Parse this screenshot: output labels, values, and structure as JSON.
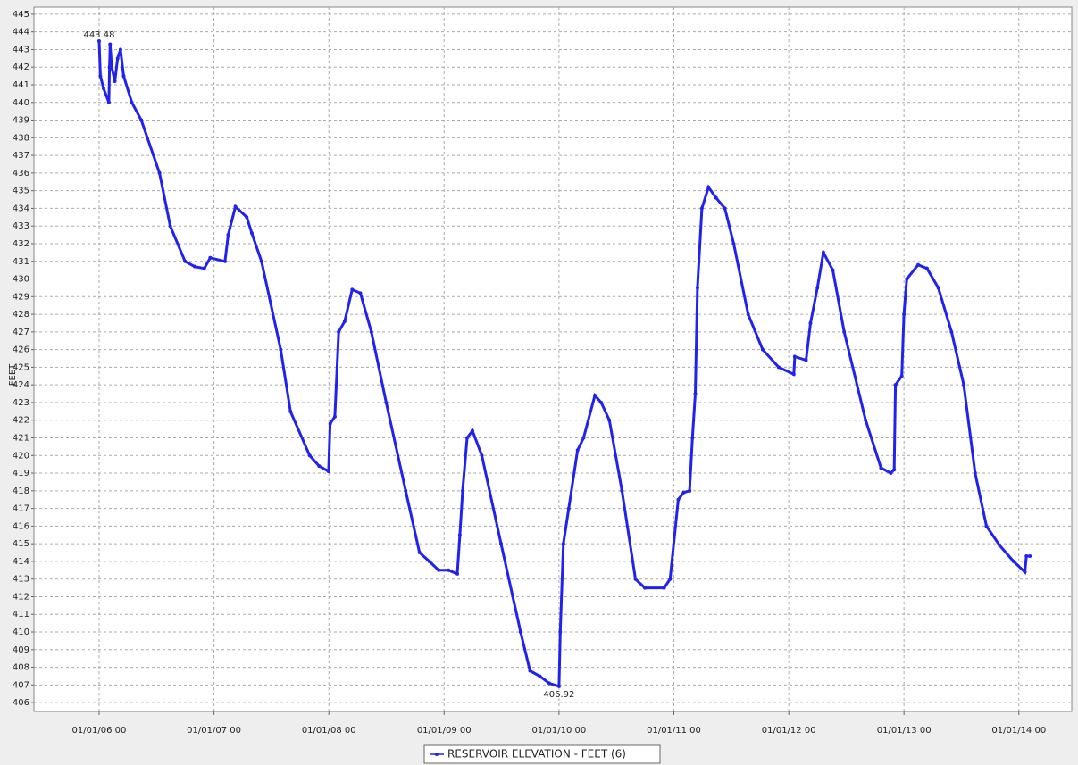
{
  "chart_data": {
    "type": "line",
    "y_label": "FEET",
    "xlim": [
      "2005-06-08",
      "2014-06-18"
    ],
    "xticks": [
      {
        "value": "2006-01-01",
        "label": "01/01/06 00"
      },
      {
        "value": "2007-01-01",
        "label": "01/01/07 00"
      },
      {
        "value": "2008-01-01",
        "label": "01/01/08 00"
      },
      {
        "value": "2009-01-01",
        "label": "01/01/09 00"
      },
      {
        "value": "2010-01-01",
        "label": "01/01/10 00"
      },
      {
        "value": "2011-01-01",
        "label": "01/01/11 00"
      },
      {
        "value": "2012-01-01",
        "label": "01/01/12 00"
      },
      {
        "value": "2013-01-01",
        "label": "01/01/13 00"
      },
      {
        "value": "2014-01-01",
        "label": "01/01/14 00"
      }
    ],
    "ylim": [
      405.5,
      445.4
    ],
    "yticks": [
      406,
      407,
      408,
      409,
      410,
      411,
      412,
      413,
      414,
      415,
      416,
      417,
      418,
      419,
      420,
      421,
      422,
      423,
      424,
      425,
      426,
      427,
      428,
      429,
      430,
      431,
      432,
      433,
      434,
      435,
      436,
      437,
      438,
      439,
      440,
      441,
      442,
      443,
      444,
      445
    ],
    "grid": true,
    "x": [
      "2006-01-01",
      "2006-01-05",
      "2006-01-15",
      "2006-02-01",
      "2006-02-03",
      "2006-02-05",
      "2006-02-10",
      "2006-02-20",
      "2006-03-01",
      "2006-03-10",
      "2006-03-20",
      "2006-04-15",
      "2006-05-15",
      "2006-07-12",
      "2006-08-15",
      "2006-10-01",
      "2006-11-01",
      "2006-12-01",
      "2006-12-20",
      "2007-02-05",
      "2007-02-15",
      "2007-03-10",
      "2007-04-15",
      "2007-05-01",
      "2007-06-01",
      "2007-08-01",
      "2007-09-01",
      "2007-11-01",
      "2007-12-01",
      "2007-12-31",
      "2008-01-05",
      "2008-01-20",
      "2008-02-01",
      "2008-02-20",
      "2008-03-15",
      "2008-04-10",
      "2008-05-15",
      "2008-07-01",
      "2008-09-01",
      "2008-10-15",
      "2008-11-15",
      "2008-12-15",
      "2009-01-15",
      "2009-02-12",
      "2009-02-20",
      "2009-03-01",
      "2009-03-15",
      "2009-04-01",
      "2009-05-01",
      "2009-07-01",
      "2009-09-01",
      "2009-10-01",
      "2009-11-01",
      "2009-12-01",
      "2010-01-01",
      "2010-01-05",
      "2010-01-15",
      "2010-02-01",
      "2010-03-01",
      "2010-03-20",
      "2010-04-25",
      "2010-05-15",
      "2010-06-10",
      "2010-07-20",
      "2010-09-01",
      "2010-10-01",
      "2010-12-01",
      "2010-12-20",
      "2011-01-15",
      "2011-02-01",
      "2011-02-20",
      "2011-03-01",
      "2011-03-10",
      "2011-03-17",
      "2011-03-31",
      "2011-04-21",
      "2011-05-15",
      "2011-06-12",
      "2011-07-10",
      "2011-08-25",
      "2011-10-10",
      "2011-11-30",
      "2012-01-17",
      "2012-01-20",
      "2012-02-25",
      "2012-03-10",
      "2012-04-01",
      "2012-04-20",
      "2012-05-20",
      "2012-06-25",
      "2012-09-01",
      "2012-10-20",
      "2012-11-20",
      "2012-12-01",
      "2012-12-05",
      "2012-12-25",
      "2013-01-01",
      "2013-01-10",
      "2013-02-15",
      "2013-03-15",
      "2013-04-20",
      "2013-06-01",
      "2013-07-10",
      "2013-08-15",
      "2013-09-20",
      "2013-11-01",
      "2013-12-15",
      "2014-01-20",
      "2014-01-25",
      "2014-02-05"
    ],
    "series": [
      {
        "name": "RESERVOIR ELEVATION - FEET (6)",
        "color": "#2222ee",
        "values": [
          443.48,
          441.5,
          440.8,
          440.0,
          442.0,
          443.3,
          442.0,
          441.2,
          442.5,
          443.0,
          441.5,
          440.0,
          439.0,
          436.0,
          433.0,
          431.0,
          430.7,
          430.6,
          431.2,
          431.0,
          432.5,
          434.1,
          433.5,
          432.6,
          431.0,
          426.0,
          422.5,
          420.0,
          419.4,
          419.1,
          421.8,
          422.2,
          427.0,
          427.6,
          429.4,
          429.2,
          427.0,
          423.0,
          418.0,
          414.5,
          414.0,
          413.5,
          413.5,
          413.3,
          415.5,
          418.0,
          421.0,
          421.4,
          420.0,
          415.0,
          410.0,
          407.8,
          407.5,
          407.1,
          406.92,
          410.0,
          415.0,
          417.0,
          420.3,
          421.0,
          423.4,
          423.0,
          422.0,
          418.0,
          413.0,
          412.5,
          412.5,
          413.0,
          417.5,
          417.9,
          418.0,
          421.0,
          423.5,
          429.5,
          434.0,
          435.2,
          434.6,
          434.0,
          432.0,
          428.0,
          426.0,
          425.0,
          424.6,
          425.6,
          425.4,
          427.5,
          429.5,
          431.5,
          430.5,
          427.0,
          422.0,
          419.3,
          419.0,
          419.2,
          424.0,
          424.5,
          428.0,
          430.0,
          430.8,
          430.6,
          429.5,
          427.0,
          424.0,
          419.0,
          416.0,
          414.9,
          414.0,
          413.4,
          414.3,
          414.3
        ]
      }
    ],
    "annotations": [
      {
        "x": "2006-01-01",
        "y": 443.48,
        "text": "443.48"
      },
      {
        "x": "2010-01-01",
        "y": 406.92,
        "text": "406.92"
      }
    ],
    "legend": "bottom"
  }
}
